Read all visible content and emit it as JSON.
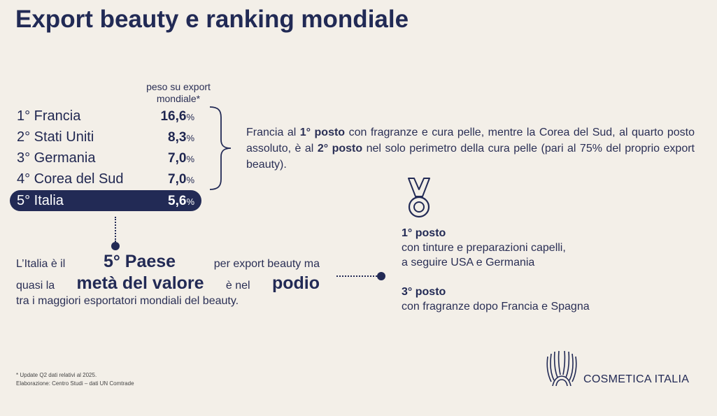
{
  "title": "Export beauty e ranking mondiale",
  "column_header": [
    "peso su export",
    "mondiale*"
  ],
  "ranking": [
    {
      "label": "1° Francia",
      "value": "16,6",
      "unit": "%"
    },
    {
      "label": "2° Stati Uniti",
      "value": "8,3",
      "unit": "%"
    },
    {
      "label": "3° Germania",
      "value": "7,0",
      "unit": "%"
    },
    {
      "label": "4° Corea del Sud",
      "value": "7,0",
      "unit": "%"
    },
    {
      "label": "5° Italia",
      "value": "5,6",
      "unit": "%"
    }
  ],
  "highlighted_row": 4,
  "france_note": {
    "p1": "Francia al ",
    "b1": "1° posto",
    "p2": " con fragranze e cura pelle, mentre la Corea del Sud, al quarto posto assoluto, è al ",
    "b2": "2° posto",
    "p3": " nel solo perimetro della cura pelle (pari al 75% del proprio export beauty)."
  },
  "italy_note": {
    "l1_a": "L’Italia è il",
    "l1_b": "5° Paese",
    "l1_c": "per export beauty ma",
    "l2_a": "quasi la",
    "l2_b": "metà del valore",
    "l2_c": "è nel",
    "l2_d": "podio",
    "l3": "tra i maggiori esportatori mondiali del beauty."
  },
  "podium": [
    {
      "heading": "1° posto",
      "lines": [
        "con tinture e preparazioni capelli,",
        "a seguire USA e Germania"
      ]
    },
    {
      "heading": "3° posto",
      "lines": [
        "con fragranze dopo Francia e Spagna"
      ]
    }
  ],
  "footnote": [
    "* Update Q2 dati relativi al 2025.",
    "Elaborazione: Centro Studi – dati UN Comtrade"
  ],
  "logo_text": "COSMETICA ITALIA",
  "icons": {
    "medal": "medal-icon",
    "logo": "cosmetica-italia-logo"
  },
  "colors": {
    "navy": "#222a55",
    "background": "#f3efe8"
  }
}
